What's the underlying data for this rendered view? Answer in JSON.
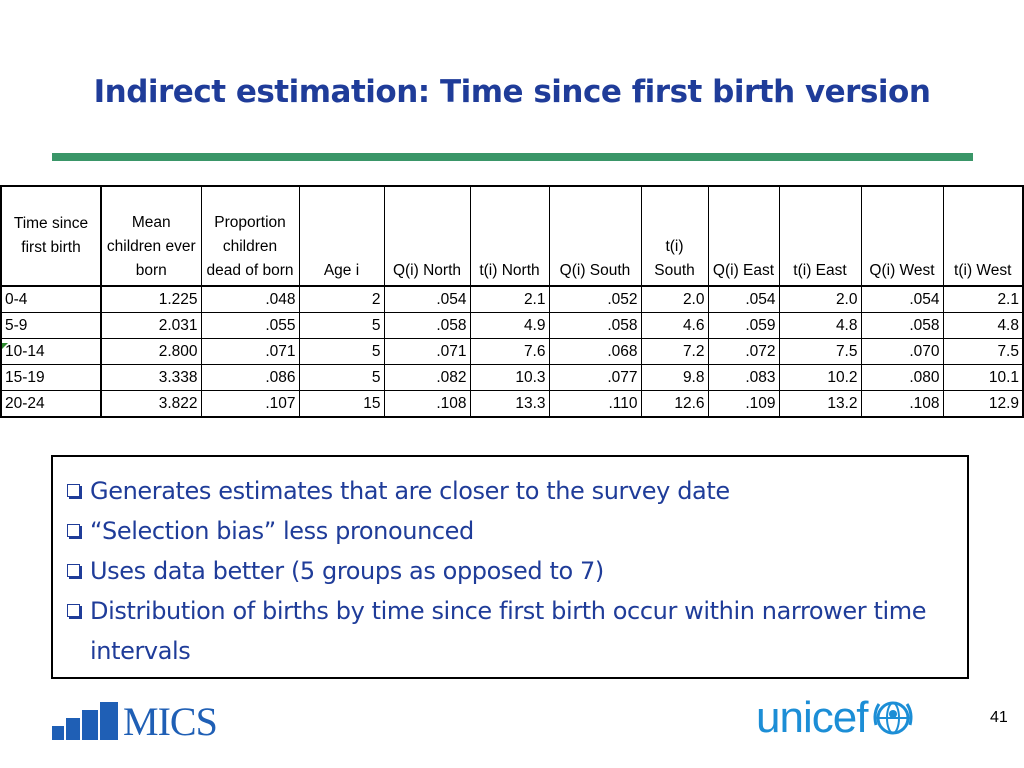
{
  "title": "Indirect estimation: Time since first birth version",
  "table": {
    "headers": [
      "Time since first birth",
      "Mean children ever born",
      "Proportion children dead of born",
      "Age i",
      "Q(i) North",
      "t(i) North",
      "Q(i) South",
      "t(i) South",
      "Q(i) East",
      "t(i) East",
      "Q(i) West",
      "t(i) West"
    ],
    "rows": [
      [
        "0-4",
        "1.225",
        ".048",
        "2",
        ".054",
        "2.1",
        ".052",
        "2.0",
        ".054",
        "2.0",
        ".054",
        "2.1"
      ],
      [
        "5-9",
        "2.031",
        ".055",
        "5",
        ".058",
        "4.9",
        ".058",
        "4.6",
        ".059",
        "4.8",
        ".058",
        "4.8"
      ],
      [
        "10-14",
        "2.800",
        ".071",
        "5",
        ".071",
        "7.6",
        ".068",
        "7.2",
        ".072",
        "7.5",
        ".070",
        "7.5"
      ],
      [
        "15-19",
        "3.338",
        ".086",
        "5",
        ".082",
        "10.3",
        ".077",
        "9.8",
        ".083",
        "10.2",
        ".080",
        "10.1"
      ],
      [
        "20-24",
        "3.822",
        ".107",
        "15",
        ".108",
        "13.3",
        ".110",
        "12.6",
        ".109",
        "13.2",
        ".108",
        "12.9"
      ]
    ]
  },
  "bullets": [
    "Generates estimates that are closer to the survey date",
    "“Selection bias” less pronounced",
    "Uses data better (5 groups as opposed to 7)",
    "Distribution of births by time since first birth occur within narrower time intervals"
  ],
  "logos": {
    "mics": "MICS",
    "unicef": "unicef"
  },
  "page_number": "41",
  "colors": {
    "title": "#1f3c99",
    "rule": "#3a9668",
    "mics": "#1f5fb5",
    "unicef": "#1c8ed6"
  }
}
